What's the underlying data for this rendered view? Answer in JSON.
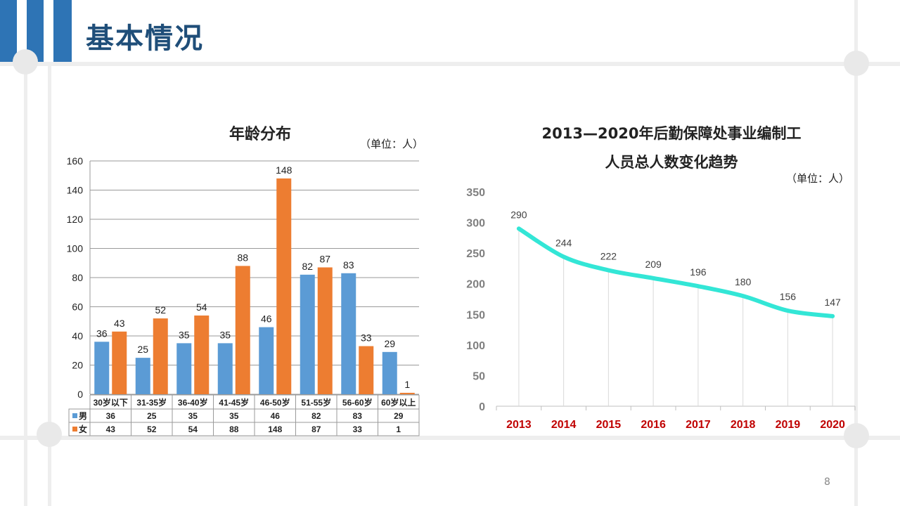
{
  "page": {
    "title": "基本情况",
    "page_number": "8"
  },
  "colors": {
    "male": "#5b9bd5",
    "female": "#ed7d31",
    "trend_line": "#33e6d6",
    "year_label": "#c00000",
    "title_blue": "#1f4e79"
  },
  "chart_data": [
    {
      "type": "bar",
      "title": "年龄分布",
      "unit": "（单位：人）",
      "categories": [
        "30岁以下",
        "31-35岁",
        "36-40岁",
        "41-45岁",
        "46-50岁",
        "51-55岁",
        "56-60岁",
        "60岁以上"
      ],
      "series": [
        {
          "name": "男",
          "values": [
            36,
            25,
            35,
            35,
            46,
            82,
            83,
            29
          ]
        },
        {
          "name": "女",
          "values": [
            43,
            52,
            54,
            88,
            148,
            87,
            33,
            1
          ]
        }
      ],
      "ylim": [
        0,
        160
      ],
      "yticks": [
        0,
        20,
        40,
        60,
        80,
        100,
        120,
        140,
        160
      ],
      "data_table": true,
      "grid": true
    },
    {
      "type": "line",
      "title_line1": "2013—2020年后勤保障处事业编制工",
      "title_line2": "人员总人数变化趋势",
      "unit": "（单位：人）",
      "x": [
        "2013",
        "2014",
        "2015",
        "2016",
        "2017",
        "2018",
        "2019",
        "2020"
      ],
      "values": [
        290,
        244,
        222,
        209,
        196,
        180,
        156,
        147
      ],
      "ylim": [
        0,
        350
      ],
      "yticks": [
        0,
        50,
        100,
        150,
        200,
        250,
        300,
        350
      ],
      "grid": false
    }
  ]
}
